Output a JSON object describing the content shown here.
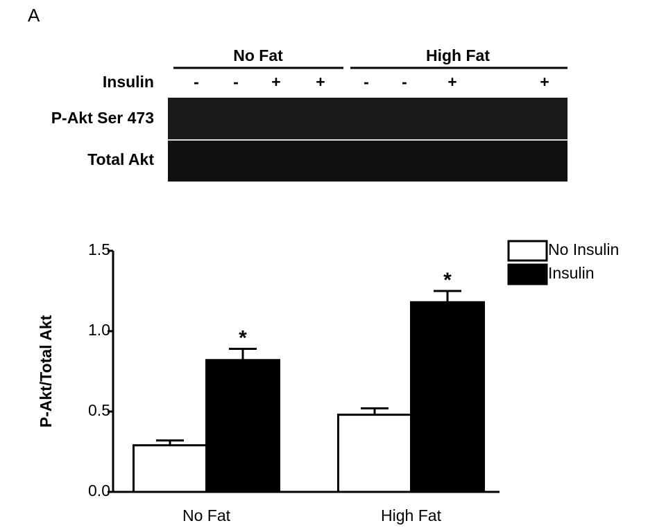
{
  "panel_label": "A",
  "blot": {
    "groups": [
      "No Fat",
      "High Fat"
    ],
    "treatment_label": "Insulin",
    "treatment_signs": [
      "-",
      "-",
      "+",
      "+",
      "-",
      "-",
      "+",
      null,
      "+"
    ],
    "rows": [
      "P-Akt Ser 473",
      "Total Akt"
    ]
  },
  "chart_data": {
    "type": "bar",
    "ylabel": "P-Akt/Total Akt",
    "categories": [
      "No Fat",
      "High Fat"
    ],
    "series": [
      {
        "name": "No Insulin",
        "color": "#ffffff",
        "values": [
          0.29,
          0.48
        ],
        "errors": [
          0.03,
          0.04
        ]
      },
      {
        "name": "Insulin",
        "color": "#000000",
        "values": [
          0.82,
          1.18
        ],
        "errors": [
          0.07,
          0.07
        ],
        "markers": [
          "*",
          "*"
        ]
      }
    ],
    "ylim": [
      0,
      1.5
    ],
    "yticks": [
      {
        "value": 0,
        "label": "0.0"
      },
      0.5,
      {
        "value": 1,
        "label": "1.0"
      },
      1.5
    ],
    "legend": "right"
  }
}
